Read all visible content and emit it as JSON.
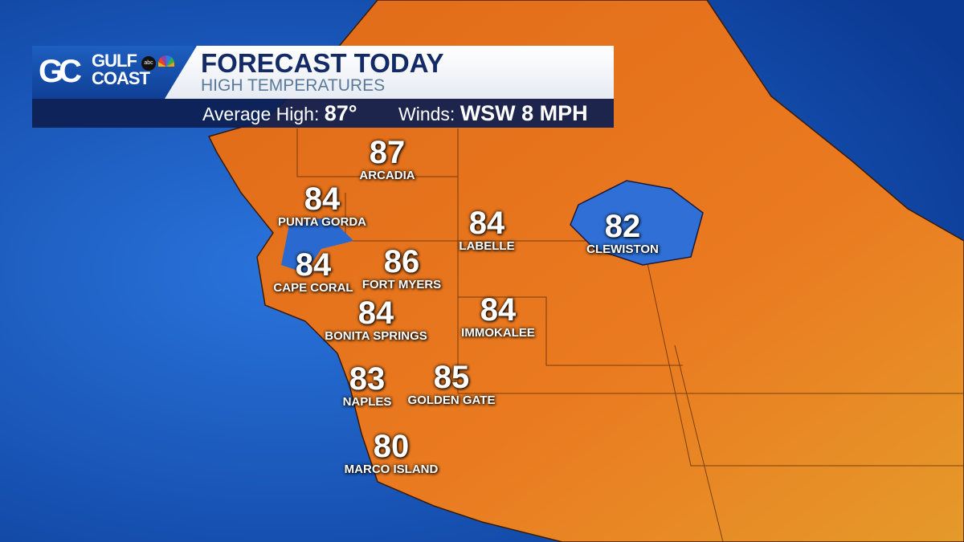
{
  "header": {
    "brand_line1": "GULF",
    "brand_line2": "COAST",
    "logo_mark": "GC",
    "title": "FORECAST TODAY",
    "subtitle": "HIGH TEMPERATURES",
    "average_high_label": "Average High:",
    "average_high_value": "87°",
    "winds_label": "Winds:",
    "winds_value": "WSW 8 MPH"
  },
  "colors": {
    "land": "#e8731c",
    "water": "#1b5fc8",
    "lake": "#2f6fd6",
    "banner_navy": "#132a66"
  },
  "cities": [
    {
      "name": "ARCADIA",
      "temp": "87"
    },
    {
      "name": "PUNTA GORDA",
      "temp": "84"
    },
    {
      "name": "LABELLE",
      "temp": "84"
    },
    {
      "name": "CLEWISTON",
      "temp": "82"
    },
    {
      "name": "CAPE CORAL",
      "temp": "84"
    },
    {
      "name": "FORT MYERS",
      "temp": "86"
    },
    {
      "name": "BONITA SPRINGS",
      "temp": "84"
    },
    {
      "name": "IMMOKALEE",
      "temp": "84"
    },
    {
      "name": "NAPLES",
      "temp": "83"
    },
    {
      "name": "GOLDEN GATE",
      "temp": "85"
    },
    {
      "name": "MARCO ISLAND",
      "temp": "80"
    }
  ]
}
